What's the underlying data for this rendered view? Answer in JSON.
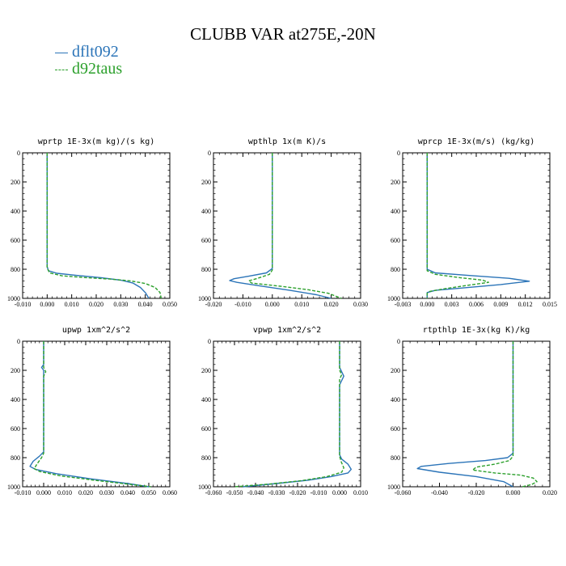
{
  "title": "CLUBB VAR at275E,-20N",
  "legend": [
    {
      "name": "dflt092",
      "color": "#2b74b8",
      "dashed": false
    },
    {
      "name": "d92taus",
      "color": "#2ca02c",
      "dashed": true
    }
  ],
  "chart_data": [
    {
      "type": "line",
      "title": "wprtp  1E-3x(m kg)/(s kg)",
      "xlim": [
        -0.01,
        0.05
      ],
      "ylim": [
        1000,
        0
      ],
      "xticks": [
        "-0.010",
        "0.000",
        "0.010",
        "0.020",
        "0.030",
        "0.040",
        "0.050"
      ],
      "yticks": [
        "0",
        "200",
        "400",
        "600",
        "800",
        "1000"
      ],
      "series": [
        {
          "name": "dflt092",
          "points": [
            [
              0,
              0
            ],
            [
              0,
              200
            ],
            [
              0,
              400
            ],
            [
              0,
              600
            ],
            [
              0,
              780
            ],
            [
              0.0005,
              810
            ],
            [
              0.004,
              828
            ],
            [
              0.012,
              842
            ],
            [
              0.022,
              858
            ],
            [
              0.03,
              875
            ],
            [
              0.035,
              895
            ],
            [
              0.038,
              925
            ],
            [
              0.04,
              960
            ],
            [
              0.0415,
              1000
            ]
          ]
        },
        {
          "name": "d92taus",
          "points": [
            [
              0,
              0
            ],
            [
              0,
              200
            ],
            [
              0,
              400
            ],
            [
              0,
              600
            ],
            [
              0,
              790
            ],
            [
              0.001,
              825
            ],
            [
              0.006,
              845
            ],
            [
              0.016,
              858
            ],
            [
              0.026,
              868
            ],
            [
              0.034,
              880
            ],
            [
              0.04,
              898
            ],
            [
              0.044,
              925
            ],
            [
              0.046,
              960
            ],
            [
              0.0465,
              1000
            ]
          ]
        }
      ]
    },
    {
      "type": "line",
      "title": "wpthlp  1x(m K)/s",
      "xlim": [
        -0.02,
        0.03
      ],
      "ylim": [
        1000,
        0
      ],
      "xticks": [
        "-0.020",
        "-0.010",
        "0.000",
        "0.010",
        "0.020",
        "0.030"
      ],
      "yticks": [
        "0",
        "200",
        "400",
        "600",
        "800",
        "1000"
      ],
      "series": [
        {
          "name": "dflt092",
          "points": [
            [
              0,
              0
            ],
            [
              0,
              200
            ],
            [
              0,
              400
            ],
            [
              0,
              600
            ],
            [
              0,
              795
            ],
            [
              -0.002,
              825
            ],
            [
              -0.008,
              848
            ],
            [
              -0.013,
              865
            ],
            [
              -0.0145,
              878
            ],
            [
              -0.012,
              890
            ],
            [
              -0.004,
              915
            ],
            [
              0.006,
              945
            ],
            [
              0.015,
              975
            ],
            [
              0.02,
              1000
            ]
          ]
        },
        {
          "name": "d92taus",
          "points": [
            [
              0,
              0
            ],
            [
              0,
              200
            ],
            [
              0,
              400
            ],
            [
              0,
              600
            ],
            [
              0,
              805
            ],
            [
              -0.001,
              835
            ],
            [
              -0.005,
              862
            ],
            [
              -0.008,
              880
            ],
            [
              -0.007,
              895
            ],
            [
              0.002,
              915
            ],
            [
              0.012,
              940
            ],
            [
              0.019,
              965
            ],
            [
              0.0235,
              1000
            ]
          ]
        }
      ]
    },
    {
      "type": "line",
      "title": "wprcp  1E-3x(m/s) (kg/kg)",
      "xlim": [
        -0.003,
        0.015
      ],
      "ylim": [
        1000,
        0
      ],
      "xticks": [
        "-0.003",
        "0.000",
        "0.003",
        "0.006",
        "0.009",
        "0.012",
        "0.015"
      ],
      "yticks": [
        "0",
        "200",
        "400",
        "600",
        "800",
        "1000"
      ],
      "series": [
        {
          "name": "dflt092",
          "points": [
            [
              0,
              0
            ],
            [
              0,
              200
            ],
            [
              0,
              400
            ],
            [
              0,
              600
            ],
            [
              0,
              800
            ],
            [
              0.001,
              825
            ],
            [
              0.005,
              842
            ],
            [
              0.01,
              862
            ],
            [
              0.0125,
              882
            ],
            [
              0.009,
              905
            ],
            [
              0.004,
              930
            ],
            [
              0.001,
              945
            ],
            [
              0,
              960
            ],
            [
              0,
              1000
            ]
          ]
        },
        {
          "name": "d92taus",
          "points": [
            [
              0,
              0
            ],
            [
              0,
              200
            ],
            [
              0,
              400
            ],
            [
              0,
              600
            ],
            [
              0,
              810
            ],
            [
              0.001,
              835
            ],
            [
              0.004,
              858
            ],
            [
              0.0068,
              875
            ],
            [
              0.0075,
              890
            ],
            [
              0.005,
              910
            ],
            [
              0.002,
              935
            ],
            [
              0.0003,
              952
            ],
            [
              0,
              965
            ],
            [
              0,
              1000
            ]
          ]
        }
      ]
    },
    {
      "type": "line",
      "title": "upwp  1xm^2/s^2",
      "xlim": [
        -0.01,
        0.06
      ],
      "ylim": [
        1000,
        0
      ],
      "xticks": [
        "-0.010",
        "0.000",
        "0.010",
        "0.020",
        "0.030",
        "0.040",
        "0.050",
        "0.060"
      ],
      "yticks": [
        "0",
        "200",
        "400",
        "600",
        "800",
        "1000"
      ],
      "series": [
        {
          "name": "dflt092",
          "points": [
            [
              0,
              0
            ],
            [
              0,
              160
            ],
            [
              -0.001,
              180
            ],
            [
              0,
              200
            ],
            [
              0,
              220
            ],
            [
              0,
              300
            ],
            [
              0,
              400
            ],
            [
              0,
              600
            ],
            [
              0,
              760
            ],
            [
              -0.002,
              790
            ],
            [
              -0.005,
              825
            ],
            [
              -0.0065,
              860
            ],
            [
              -0.004,
              880
            ],
            [
              0.006,
              910
            ],
            [
              0.022,
              945
            ],
            [
              0.04,
              978
            ],
            [
              0.05,
              1000
            ]
          ]
        },
        {
          "name": "d92taus",
          "points": [
            [
              0,
              0
            ],
            [
              0,
              180
            ],
            [
              0.001,
              210
            ],
            [
              0,
              240
            ],
            [
              0,
              300
            ],
            [
              0,
              400
            ],
            [
              0,
              600
            ],
            [
              0,
              770
            ],
            [
              -0.001,
              800
            ],
            [
              -0.003,
              840
            ],
            [
              -0.0045,
              875
            ],
            [
              -0.002,
              895
            ],
            [
              0.008,
              925
            ],
            [
              0.024,
              955
            ],
            [
              0.042,
              985
            ],
            [
              0.051,
              1000
            ]
          ]
        }
      ]
    },
    {
      "type": "line",
      "title": "vpwp  1xm^2/s^2",
      "xlim": [
        -0.06,
        0.01
      ],
      "ylim": [
        1000,
        0
      ],
      "xticks": [
        "-0.060",
        "-0.050",
        "-0.040",
        "-0.030",
        "-0.020",
        "-0.010",
        "0.000",
        "0.010"
      ],
      "yticks": [
        "0",
        "200",
        "400",
        "600",
        "800",
        "1000"
      ],
      "series": [
        {
          "name": "dflt092",
          "points": [
            [
              0,
              0
            ],
            [
              0,
              180
            ],
            [
              0.001,
              210
            ],
            [
              0.002,
              240
            ],
            [
              0.001,
              270
            ],
            [
              0,
              300
            ],
            [
              0,
              400
            ],
            [
              0,
              600
            ],
            [
              0,
              780
            ],
            [
              0.001,
              810
            ],
            [
              0.004,
              845
            ],
            [
              0.0055,
              880
            ],
            [
              0.004,
              905
            ],
            [
              -0.004,
              930
            ],
            [
              -0.015,
              955
            ],
            [
              -0.03,
              978
            ],
            [
              -0.046,
              1000
            ]
          ]
        },
        {
          "name": "d92taus",
          "points": [
            [
              0,
              0
            ],
            [
              0,
              200
            ],
            [
              0.001,
              230
            ],
            [
              0,
              260
            ],
            [
              0,
              300
            ],
            [
              0,
              400
            ],
            [
              0,
              600
            ],
            [
              0,
              790
            ],
            [
              0.0008,
              830
            ],
            [
              0.002,
              870
            ],
            [
              0.001,
              900
            ],
            [
              -0.006,
              930
            ],
            [
              -0.018,
              958
            ],
            [
              -0.034,
              982
            ],
            [
              -0.05,
              1000
            ]
          ]
        }
      ]
    },
    {
      "type": "line",
      "title": "rtpthlp  1E-3x(kg K)/kg",
      "xlim": [
        -0.06,
        0.02
      ],
      "ylim": [
        1000,
        0
      ],
      "xticks": [
        "-0.060",
        "-0.040",
        "-0.020",
        "0.000",
        "0.020"
      ],
      "yticks": [
        "0",
        "200",
        "400",
        "600",
        "800",
        "1000"
      ],
      "series": [
        {
          "name": "dflt092",
          "points": [
            [
              0,
              0
            ],
            [
              0,
              200
            ],
            [
              0,
              400
            ],
            [
              0,
              600
            ],
            [
              0,
              770
            ],
            [
              -0.003,
              800
            ],
            [
              -0.015,
              820
            ],
            [
              -0.035,
              840
            ],
            [
              -0.05,
              860
            ],
            [
              -0.052,
              875
            ],
            [
              -0.04,
              900
            ],
            [
              -0.02,
              930
            ],
            [
              -0.005,
              965
            ],
            [
              0,
              1000
            ]
          ]
        },
        {
          "name": "d92taus",
          "points": [
            [
              0,
              0
            ],
            [
              0,
              200
            ],
            [
              0,
              400
            ],
            [
              0,
              600
            ],
            [
              0,
              790
            ],
            [
              -0.002,
              820
            ],
            [
              -0.01,
              845
            ],
            [
              -0.02,
              865
            ],
            [
              -0.022,
              885
            ],
            [
              -0.01,
              905
            ],
            [
              0.004,
              920
            ],
            [
              0.011,
              940
            ],
            [
              0.013,
              965
            ],
            [
              0.01,
              985
            ],
            [
              0.005,
              1000
            ]
          ]
        }
      ]
    }
  ]
}
